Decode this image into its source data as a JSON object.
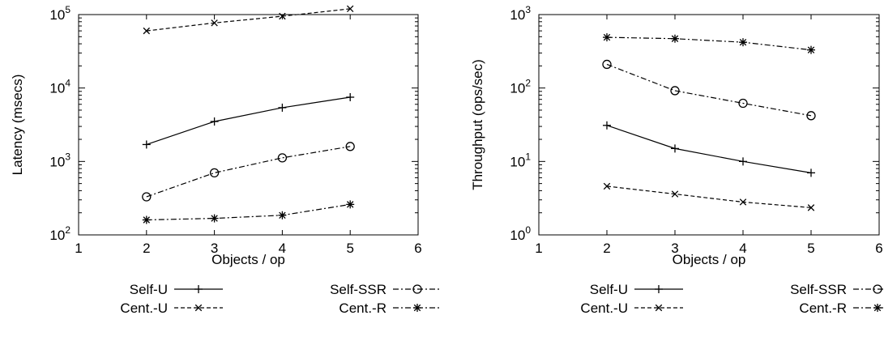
{
  "chart_data": [
    {
      "type": "line",
      "xlabel": "Objects / op",
      "ylabel": "Latency (msecs)",
      "xlim": [
        1,
        6
      ],
      "ylim": [
        100,
        100000
      ],
      "yscale": "log",
      "x_ticks": [
        "1",
        "2",
        "3",
        "4",
        "5",
        "6"
      ],
      "y_ticks": [
        {
          "base": "10",
          "exp": "2"
        },
        {
          "base": "10",
          "exp": "3"
        },
        {
          "base": "10",
          "exp": "4"
        },
        {
          "base": "10",
          "exp": "5"
        }
      ],
      "grid": false,
      "legend_position": "below",
      "series": [
        {
          "name": "Self-U",
          "marker": "plus",
          "dash": "solid",
          "x": [
            2,
            3,
            4,
            5
          ],
          "values": [
            1700,
            3500,
            5400,
            7500
          ]
        },
        {
          "name": "Cent.-U",
          "marker": "cross",
          "dash": "dashed",
          "x": [
            2,
            3,
            4,
            5
          ],
          "values": [
            60000,
            77000,
            95000,
            120000
          ]
        },
        {
          "name": "Self-SSR",
          "marker": "circle",
          "dash": "dashdot",
          "x": [
            2,
            3,
            4,
            5
          ],
          "values": [
            330,
            700,
            1120,
            1600
          ]
        },
        {
          "name": "Cent.-R",
          "marker": "star",
          "dash": "dashdot",
          "x": [
            2,
            3,
            4,
            5
          ],
          "values": [
            160,
            168,
            185,
            260
          ]
        }
      ]
    },
    {
      "type": "line",
      "xlabel": "Objects / op",
      "ylabel": "Throughput (ops/sec)",
      "xlim": [
        1,
        6
      ],
      "ylim": [
        1,
        1000
      ],
      "yscale": "log",
      "x_ticks": [
        "1",
        "2",
        "3",
        "4",
        "5",
        "6"
      ],
      "y_ticks": [
        {
          "base": "10",
          "exp": "0"
        },
        {
          "base": "10",
          "exp": "1"
        },
        {
          "base": "10",
          "exp": "2"
        },
        {
          "base": "10",
          "exp": "3"
        }
      ],
      "grid": false,
      "legend_position": "below",
      "series": [
        {
          "name": "Self-U",
          "marker": "plus",
          "dash": "solid",
          "x": [
            2,
            3,
            4,
            5
          ],
          "values": [
            31,
            15,
            10,
            7
          ]
        },
        {
          "name": "Cent.-U",
          "marker": "cross",
          "dash": "dashed",
          "x": [
            2,
            3,
            4,
            5
          ],
          "values": [
            4.6,
            3.6,
            2.8,
            2.35
          ]
        },
        {
          "name": "Self-SSR",
          "marker": "circle",
          "dash": "dashdot",
          "x": [
            2,
            3,
            4,
            5
          ],
          "values": [
            210,
            92,
            62,
            42
          ]
        },
        {
          "name": "Cent.-R",
          "marker": "star",
          "dash": "dashdot",
          "x": [
            2,
            3,
            4,
            5
          ],
          "values": [
            490,
            470,
            420,
            330
          ]
        }
      ]
    }
  ]
}
